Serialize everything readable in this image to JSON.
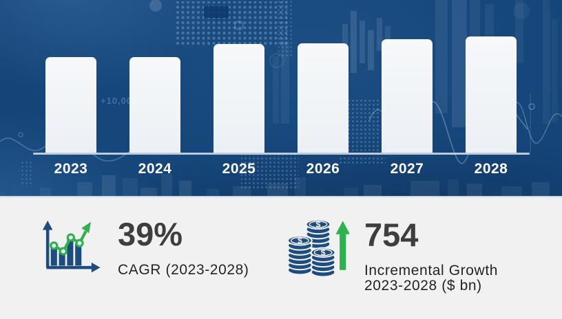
{
  "colors": {
    "hero_bg": "#144478",
    "bar_fill": "#eef1f5",
    "axis_line": "#ccd7e2",
    "panel_bg": "#f1f1f2",
    "stat_number": "#3e3e40",
    "stat_label": "#242424",
    "icon_navy": "#1d4d80",
    "icon_green": "#2eb24e",
    "year_label": "#ffffff"
  },
  "chart_data": {
    "type": "bar",
    "title": "",
    "categories": [
      "2023",
      "2024",
      "2025",
      "2026",
      "2027",
      "2028"
    ],
    "values": [
      139,
      139,
      158,
      159,
      165,
      169
    ],
    "values_unit": "px (bars carry no printed values; heights estimated from pixels)",
    "xlabel": "",
    "ylabel": "",
    "yaxis_visible": false,
    "grid": false,
    "bar_color": "#eef1f5",
    "legend": "none"
  },
  "stats": {
    "cagr": {
      "value": "39%",
      "label": "CAGR (2023-2028)",
      "icon": "growth-chart-icon"
    },
    "incremental": {
      "value": "754",
      "label_line1": "Incremental Growth",
      "label_line2": "2023-2028 ($ bn)",
      "icon": "coins-up-arrow-icon"
    }
  },
  "decor": {
    "watermark": "+10,000"
  }
}
